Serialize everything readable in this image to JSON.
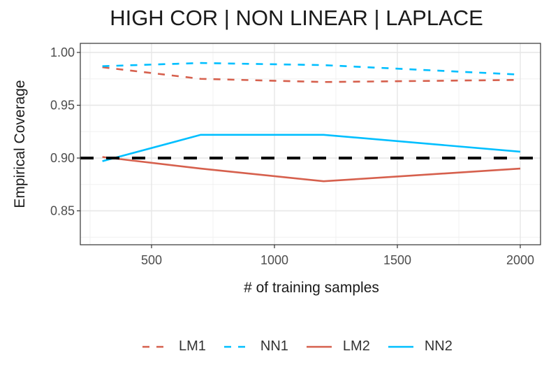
{
  "chart_data": {
    "type": "line",
    "title": "HIGH COR | NON LINEAR | LAPLACE",
    "xlabel": "# of training samples",
    "ylabel": "Empirical Coverage",
    "x": [
      300,
      700,
      1200,
      2000
    ],
    "xticks": [
      500,
      1000,
      1500,
      2000
    ],
    "xtick_labels": [
      "500",
      "1000",
      "1500",
      "2000"
    ],
    "yticks": [
      0.85,
      0.9,
      0.95,
      1.0
    ],
    "ytick_labels": [
      "0.85",
      "0.90",
      "0.95",
      "1.00"
    ],
    "xlim": [
      210,
      2080
    ],
    "ylim": [
      0.82,
      1.008
    ],
    "grid": true,
    "legend_position": "bottom",
    "reference_line": {
      "y": 0.9,
      "style": "dashed",
      "color": "#000000"
    },
    "series": [
      {
        "name": "LM1",
        "values": [
          0.986,
          0.975,
          0.972,
          0.974
        ],
        "color": "#D6604D",
        "linestyle": "dashed"
      },
      {
        "name": "NN1",
        "values": [
          0.987,
          0.99,
          0.988,
          0.979
        ],
        "color": "#00BFFF",
        "linestyle": "dashed"
      },
      {
        "name": "LM2",
        "values": [
          0.901,
          0.89,
          0.878,
          0.89
        ],
        "color": "#D6604D",
        "linestyle": "solid"
      },
      {
        "name": "NN2",
        "values": [
          0.897,
          0.922,
          0.922,
          0.906
        ],
        "color": "#00BFFF",
        "linestyle": "solid"
      }
    ]
  },
  "legend": {
    "items": [
      {
        "label": "LM1"
      },
      {
        "label": "NN1"
      },
      {
        "label": "LM2"
      },
      {
        "label": "NN2"
      }
    ]
  }
}
